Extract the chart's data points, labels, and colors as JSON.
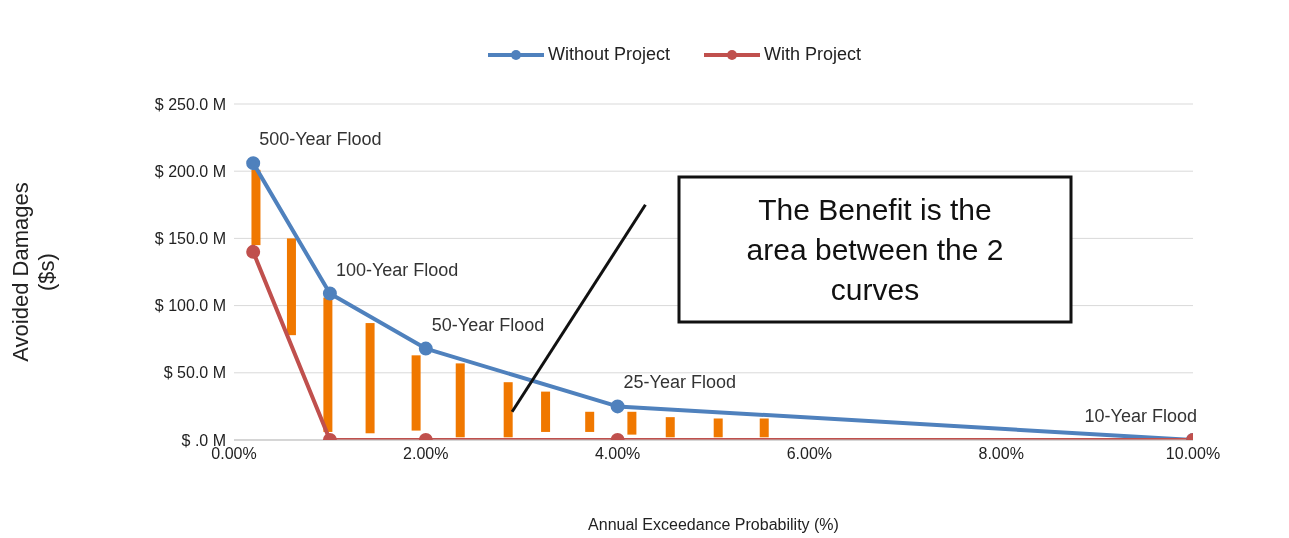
{
  "chart_data": {
    "type": "line",
    "xlabel": "Annual Exceedance Probability (%)",
    "ylabel": "Avoided Damages ($s)",
    "xlim": [
      0,
      10
    ],
    "xticks": [
      {
        "value": 0,
        "label": "0.00%"
      },
      {
        "value": 2,
        "label": "2.00%"
      },
      {
        "value": 4,
        "label": "4.00%"
      },
      {
        "value": 6,
        "label": "6.00%"
      },
      {
        "value": 8,
        "label": "8.00%"
      },
      {
        "value": 10,
        "label": "10.00%"
      }
    ],
    "ylim": [
      0,
      250
    ],
    "yticks": [
      {
        "value": 0,
        "label": "$ .0 M"
      },
      {
        "value": 50,
        "label": "$ 50.0 M"
      },
      {
        "value": 100,
        "label": "$ 100.0 M"
      },
      {
        "value": 150,
        "label": "$ 150.0 M"
      },
      {
        "value": 200,
        "label": "$ 200.0 M"
      },
      {
        "value": 250,
        "label": "$ 250.0 M"
      }
    ],
    "grid": "y",
    "legend": "top",
    "marker": "circle",
    "line_style": "solid",
    "series": [
      {
        "type": "bar",
        "color": "#f07800",
        "x": [
          0.23,
          0.6,
          0.98,
          1.42,
          1.9,
          2.36,
          2.86,
          3.25,
          3.71,
          4.15,
          4.55,
          5.05,
          5.53
        ],
        "base": [
          145,
          78,
          6,
          5,
          7,
          2,
          2,
          6,
          6,
          4,
          2,
          2,
          2
        ],
        "values": [
          56,
          72,
          100,
          82,
          56,
          55,
          41,
          30,
          15,
          17,
          15,
          14,
          14
        ]
      },
      {
        "name": "Without Project",
        "color": "#4f81bd",
        "x": [
          0.2,
          1,
          2,
          4,
          10
        ],
        "values": [
          206,
          109,
          68,
          25,
          0
        ]
      },
      {
        "name": "With Project",
        "color": "#c0504d",
        "x": [
          0.2,
          1,
          2,
          4,
          10
        ],
        "values": [
          140,
          0,
          0,
          0,
          0
        ]
      },
      {
        "type": "line",
        "color": "#111111",
        "marker": "none",
        "x": [
          2.9,
          4.29
        ],
        "values": [
          21,
          175
        ]
      }
    ],
    "annotations": [
      {
        "text": "500-Year Flood",
        "x": 0.2,
        "y": 206
      },
      {
        "text": "100-Year Flood",
        "x": 1,
        "y": 109
      },
      {
        "text": "50-Year Flood",
        "x": 2,
        "y": 68
      },
      {
        "text": "25-Year Flood",
        "x": 4,
        "y": 25
      },
      {
        "text": "10-Year Flood",
        "x": 10,
        "y": 0
      },
      "The Benefit is the area between the 2 curves"
    ]
  }
}
